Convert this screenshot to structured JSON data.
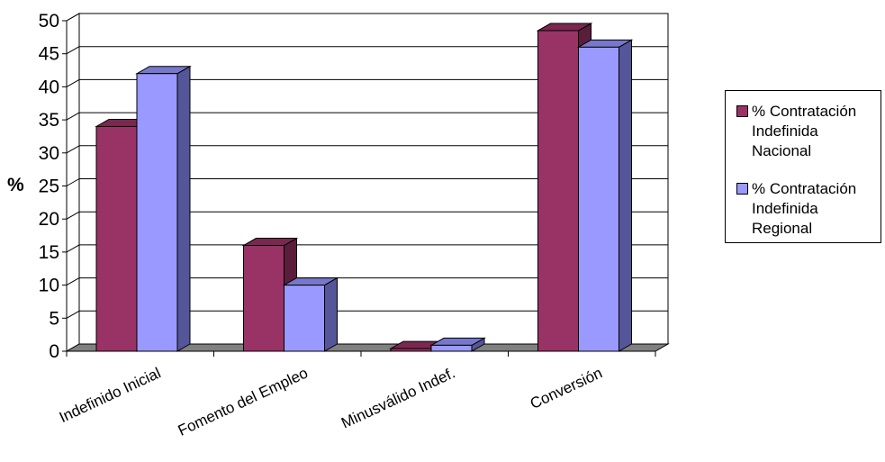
{
  "chart_data": {
    "type": "bar",
    "ylabel": "%",
    "xlabel": "",
    "ylim": [
      0,
      50
    ],
    "yticks": [
      "0",
      "5",
      "10",
      "15",
      "20",
      "25",
      "30",
      "35",
      "40",
      "45",
      "50"
    ],
    "categories": [
      "Indefinido Inicial",
      "Fomento del Empleo",
      "Minusválido Indef.",
      "Conversión"
    ],
    "series": [
      {
        "name": "% Contratación\nIndefinida\nNacional",
        "values": [
          34,
          16,
          0.4,
          48.5
        ],
        "color": "#993366",
        "side_color": "#5a1e3b",
        "top_color": "#7a2850"
      },
      {
        "name": "% Contratación\nIndefinida\nRegional",
        "values": [
          42,
          10,
          0.9,
          46
        ],
        "color": "#9999ff",
        "side_color": "#55559a",
        "top_color": "#7777cc"
      }
    ],
    "grid": true,
    "legend_position": "right",
    "three_d": true
  }
}
